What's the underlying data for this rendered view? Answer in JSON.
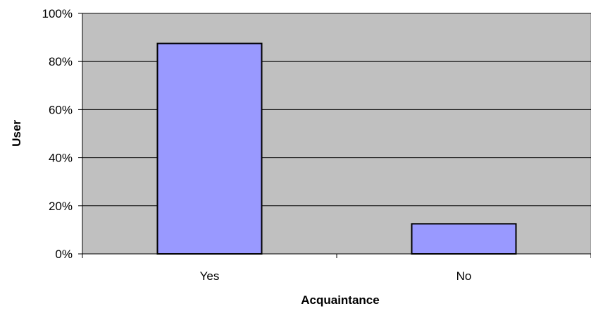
{
  "chart_data": {
    "type": "bar",
    "categories": [
      "Yes",
      "No"
    ],
    "values": [
      87.5,
      12.5
    ],
    "title": "",
    "xlabel": "Acquaintance",
    "ylabel": "User",
    "ylim": [
      0,
      100
    ],
    "yticks": [
      "0%",
      "20%",
      "40%",
      "60%",
      "80%",
      "100%"
    ],
    "ytick_values": [
      0,
      20,
      40,
      60,
      80,
      100
    ],
    "grid": true,
    "legend": "none",
    "colors": {
      "bar_fill": "#9999ff",
      "bar_stroke": "#000000",
      "plot_background": "#c0c0c0",
      "gridline": "#000000"
    }
  }
}
